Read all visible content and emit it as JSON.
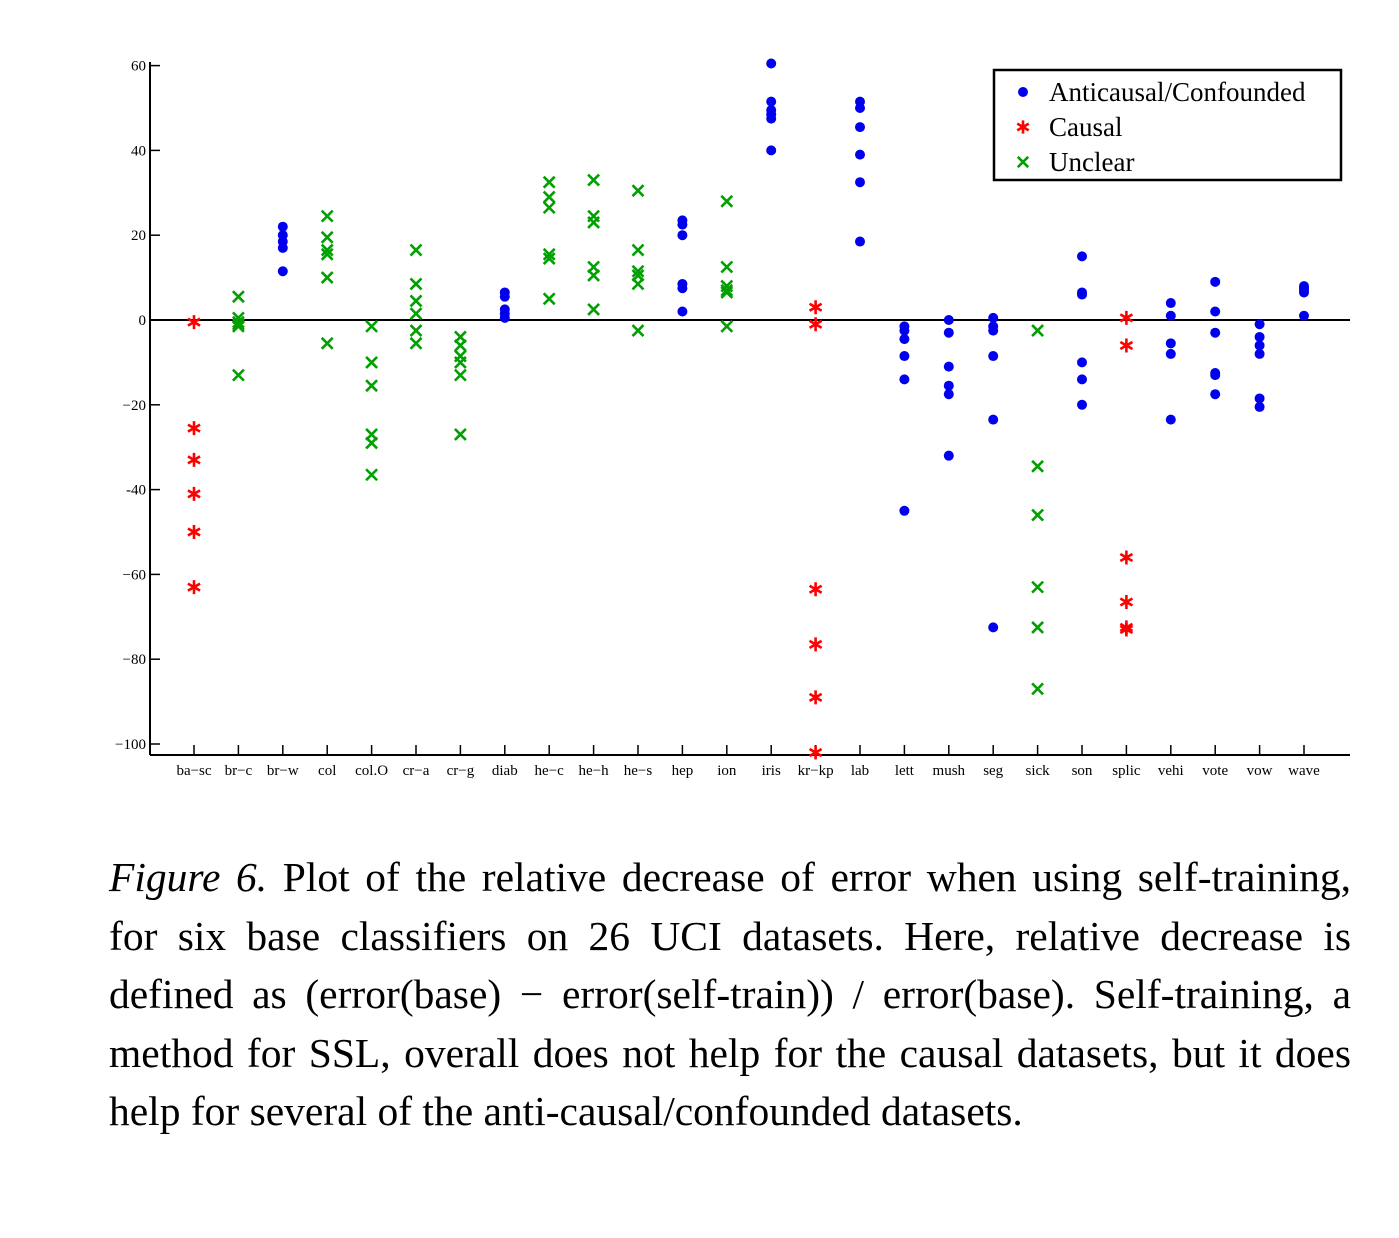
{
  "chart_data": {
    "type": "scatter",
    "ylim": [
      -102,
      62
    ],
    "yticks": [
      60,
      40,
      20,
      0,
      -20,
      -40,
      -60,
      -80,
      -100
    ],
    "ytick_labels": [
      "60",
      "40",
      "20",
      "0",
      "−20",
      "-40",
      "−60",
      "−80",
      "−100"
    ],
    "grid": false,
    "legend_position": "top-right",
    "categories": [
      "ba−sc",
      "br−c",
      "br−w",
      "col",
      "col.O",
      "cr−a",
      "cr−g",
      "diab",
      "he−c",
      "he−h",
      "he−s",
      "hep",
      "ion",
      "iris",
      "kr−kp",
      "lab",
      "lett",
      "mush",
      "seg",
      "sick",
      "son",
      "splic",
      "vehi",
      "vote",
      "vow",
      "wave"
    ],
    "series": [
      {
        "name": "Anticausal/Confounded",
        "color": "#0000ee",
        "marker": "dot",
        "points": [
          [
            "br−w",
            22
          ],
          [
            "br−w",
            20
          ],
          [
            "br−w",
            18.5
          ],
          [
            "br−w",
            17
          ],
          [
            "br−w",
            11.5
          ],
          [
            "diab",
            6.5
          ],
          [
            "diab",
            5.5
          ],
          [
            "diab",
            2.5
          ],
          [
            "diab",
            1.5
          ],
          [
            "diab",
            0.5
          ],
          [
            "hep",
            23.5
          ],
          [
            "hep",
            22.5
          ],
          [
            "hep",
            20
          ],
          [
            "hep",
            8.5
          ],
          [
            "hep",
            7.5
          ],
          [
            "hep",
            2
          ],
          [
            "iris",
            60.5
          ],
          [
            "iris",
            51.5
          ],
          [
            "iris",
            49.5
          ],
          [
            "iris",
            48.5
          ],
          [
            "iris",
            47.5
          ],
          [
            "iris",
            40
          ],
          [
            "lab",
            51.5
          ],
          [
            "lab",
            50
          ],
          [
            "lab",
            45.5
          ],
          [
            "lab",
            39
          ],
          [
            "lab",
            32.5
          ],
          [
            "lab",
            18.5
          ],
          [
            "lett",
            -1.5
          ],
          [
            "lett",
            -2.5
          ],
          [
            "lett",
            -4.5
          ],
          [
            "lett",
            -8.5
          ],
          [
            "lett",
            -14
          ],
          [
            "lett",
            -45
          ],
          [
            "mush",
            0
          ],
          [
            "mush",
            -3
          ],
          [
            "mush",
            -11
          ],
          [
            "mush",
            -15.5
          ],
          [
            "mush",
            -17.5
          ],
          [
            "mush",
            -32
          ],
          [
            "seg",
            0.5
          ],
          [
            "seg",
            -1.5
          ],
          [
            "seg",
            -2.5
          ],
          [
            "seg",
            -8.5
          ],
          [
            "seg",
            -23.5
          ],
          [
            "seg",
            -72.5
          ],
          [
            "son",
            15
          ],
          [
            "son",
            6.5
          ],
          [
            "son",
            6
          ],
          [
            "son",
            -10
          ],
          [
            "son",
            -14
          ],
          [
            "son",
            -20
          ],
          [
            "vehi",
            4
          ],
          [
            "vehi",
            1
          ],
          [
            "vehi",
            -5.5
          ],
          [
            "vehi",
            -8
          ],
          [
            "vehi",
            -23.5
          ],
          [
            "vote",
            9
          ],
          [
            "vote",
            2
          ],
          [
            "vote",
            -3
          ],
          [
            "vote",
            -12.5
          ],
          [
            "vote",
            -13
          ],
          [
            "vote",
            -17.5
          ],
          [
            "vow",
            -1
          ],
          [
            "vow",
            -4
          ],
          [
            "vow",
            -6
          ],
          [
            "vow",
            -8
          ],
          [
            "vow",
            -18.5
          ],
          [
            "vow",
            -20.5
          ],
          [
            "wave",
            8
          ],
          [
            "wave",
            7.5
          ],
          [
            "wave",
            7
          ],
          [
            "wave",
            6.5
          ],
          [
            "wave",
            1
          ]
        ]
      },
      {
        "name": "Causal",
        "color": "#ff0000",
        "marker": "star",
        "points": [
          [
            "ba−sc",
            -0.5
          ],
          [
            "ba−sc",
            -25.5
          ],
          [
            "ba−sc",
            -33
          ],
          [
            "ba−sc",
            -41
          ],
          [
            "ba−sc",
            -50
          ],
          [
            "ba−sc",
            -63
          ],
          [
            "kr−kp",
            3
          ],
          [
            "kr−kp",
            -1
          ],
          [
            "kr−kp",
            -63.5
          ],
          [
            "kr−kp",
            -76.5
          ],
          [
            "kr−kp",
            -89
          ],
          [
            "kr−kp",
            -102
          ],
          [
            "splic",
            0.5
          ],
          [
            "splic",
            -6
          ],
          [
            "splic",
            -56
          ],
          [
            "splic",
            -66.5
          ],
          [
            "splic",
            -72.5
          ],
          [
            "splic",
            -73
          ]
        ]
      },
      {
        "name": "Unclear",
        "color": "#00a000",
        "marker": "x",
        "points": [
          [
            "br−c",
            5.5
          ],
          [
            "br−c",
            0.5
          ],
          [
            "br−c",
            -0.5
          ],
          [
            "br−c",
            -1
          ],
          [
            "br−c",
            -1.5
          ],
          [
            "br−c",
            -13
          ],
          [
            "col",
            24.5
          ],
          [
            "col",
            19.5
          ],
          [
            "col",
            16.5
          ],
          [
            "col",
            15.5
          ],
          [
            "col",
            10
          ],
          [
            "col",
            -5.5
          ],
          [
            "col.O",
            -1.5
          ],
          [
            "col.O",
            -10
          ],
          [
            "col.O",
            -15.5
          ],
          [
            "col.O",
            -27
          ],
          [
            "col.O",
            -29
          ],
          [
            "col.O",
            -36.5
          ],
          [
            "cr−a",
            16.5
          ],
          [
            "cr−a",
            8.5
          ],
          [
            "cr−a",
            4.5
          ],
          [
            "cr−a",
            1.5
          ],
          [
            "cr−a",
            -2.5
          ],
          [
            "cr−a",
            -5.5
          ],
          [
            "cr−g",
            -4
          ],
          [
            "cr−g",
            -6
          ],
          [
            "cr−g",
            -8.5
          ],
          [
            "cr−g",
            -10
          ],
          [
            "cr−g",
            -13
          ],
          [
            "cr−g",
            -27
          ],
          [
            "he−c",
            32.5
          ],
          [
            "he−c",
            29
          ],
          [
            "he−c",
            26.5
          ],
          [
            "he−c",
            15.5
          ],
          [
            "he−c",
            14.5
          ],
          [
            "he−c",
            5
          ],
          [
            "he−h",
            33
          ],
          [
            "he−h",
            24.5
          ],
          [
            "he−h",
            23
          ],
          [
            "he−h",
            12.5
          ],
          [
            "he−h",
            10.5
          ],
          [
            "he−h",
            2.5
          ],
          [
            "he−s",
            30.5
          ],
          [
            "he−s",
            16.5
          ],
          [
            "he−s",
            11.5
          ],
          [
            "he−s",
            10.5
          ],
          [
            "he−s",
            8.5
          ],
          [
            "he−s",
            -2.5
          ],
          [
            "ion",
            28
          ],
          [
            "ion",
            12.5
          ],
          [
            "ion",
            8
          ],
          [
            "ion",
            7
          ],
          [
            "ion",
            6.5
          ],
          [
            "ion",
            -1.5
          ],
          [
            "sick",
            -2.5
          ],
          [
            "sick",
            -34.5
          ],
          [
            "sick",
            -46
          ],
          [
            "sick",
            -63
          ],
          [
            "sick",
            -72.5
          ],
          [
            "sick",
            -87
          ]
        ]
      }
    ]
  },
  "caption": {
    "label": "Figure 6.",
    "text": "Plot of the relative decrease of error when using self-training, for six base classifiers on 26 UCI datasets.  Here, relative decrease is defined as (error(base) − error(self-train)) / error(base).  Self-training, a method for SSL, overall does not help for the causal datasets, but it does help for several of the anti-causal/confounded datasets."
  }
}
